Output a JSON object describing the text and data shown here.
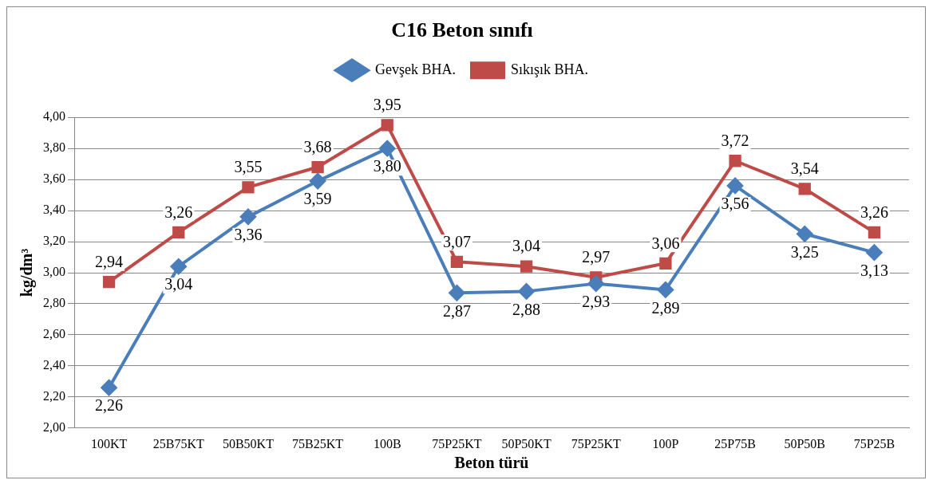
{
  "chart_data": {
    "type": "line",
    "title": "C16 Beton sınıfı",
    "xlabel": "Beton türü",
    "ylabel": "kg/dm³",
    "categories": [
      "100KT",
      "25B75KT",
      "50B50KT",
      "75B25KT",
      "100B",
      "75P25KT",
      "50P50KT",
      "75P25KT",
      "100P",
      "25P75B",
      "50P50B",
      "75P25B"
    ],
    "series": [
      {
        "name": "Gevşek BHA.",
        "color": "#4a7ebb",
        "marker": "diamond",
        "values": [
          2.26,
          3.04,
          3.36,
          3.59,
          3.8,
          2.87,
          2.88,
          2.93,
          2.89,
          3.56,
          3.25,
          3.13
        ],
        "value_labels": [
          "2,26",
          "3,04",
          "3,36",
          "3,59",
          "3,80",
          "2,87",
          "2,88",
          "2,93",
          "2,89",
          "3,56",
          "3,25",
          "3,13"
        ]
      },
      {
        "name": "Sıkışık BHA.",
        "color": "#be4b48",
        "marker": "square",
        "values": [
          2.94,
          3.26,
          3.55,
          3.68,
          3.95,
          3.07,
          3.04,
          2.97,
          3.06,
          3.72,
          3.54,
          3.26
        ],
        "value_labels": [
          "2,94",
          "3,26",
          "3,55",
          "3,68",
          "3,95",
          "3,07",
          "3,04",
          "2,97",
          "3,06",
          "3,72",
          "3,54",
          "3,26"
        ]
      }
    ],
    "ylim": [
      2.0,
      4.0
    ],
    "yticks": [
      {
        "value": 2.0,
        "label": "2,00"
      },
      {
        "value": 2.2,
        "label": "2,20"
      },
      {
        "value": 2.4,
        "label": "2,40"
      },
      {
        "value": 2.6,
        "label": "2,60"
      },
      {
        "value": 2.8,
        "label": "2,80"
      },
      {
        "value": 3.0,
        "label": "3,00"
      },
      {
        "value": 3.2,
        "label": "3,20"
      },
      {
        "value": 3.4,
        "label": "3,40"
      },
      {
        "value": 3.6,
        "label": "3,60"
      },
      {
        "value": 3.8,
        "label": "3,80"
      },
      {
        "value": 4.0,
        "label": "4,00"
      }
    ],
    "grid": "y",
    "legend": "top",
    "line_style": "solid"
  }
}
